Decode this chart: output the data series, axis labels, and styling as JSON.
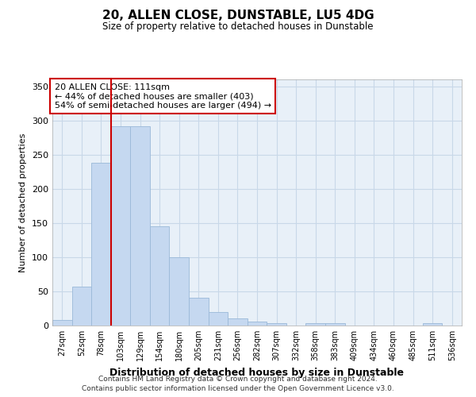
{
  "title": "20, ALLEN CLOSE, DUNSTABLE, LU5 4DG",
  "subtitle": "Size of property relative to detached houses in Dunstable",
  "xlabel": "Distribution of detached houses by size in Dunstable",
  "ylabel": "Number of detached properties",
  "bar_labels": [
    "27sqm",
    "52sqm",
    "78sqm",
    "103sqm",
    "129sqm",
    "154sqm",
    "180sqm",
    "205sqm",
    "231sqm",
    "256sqm",
    "282sqm",
    "307sqm",
    "332sqm",
    "358sqm",
    "383sqm",
    "409sqm",
    "434sqm",
    "460sqm",
    "485sqm",
    "511sqm",
    "536sqm"
  ],
  "bar_values": [
    8,
    57,
    238,
    291,
    291,
    145,
    100,
    41,
    20,
    11,
    6,
    3,
    0,
    4,
    3,
    0,
    0,
    0,
    0,
    3,
    0
  ],
  "bar_color": "#c5d8f0",
  "bar_edge_color": "#9ab8d8",
  "vline_x": 2.5,
  "vline_color": "#cc0000",
  "annotation_text": "20 ALLEN CLOSE: 111sqm\n← 44% of detached houses are smaller (403)\n54% of semi-detached houses are larger (494) →",
  "annotation_box_color": "#ffffff",
  "annotation_box_edge_color": "#cc0000",
  "ylim": [
    0,
    360
  ],
  "yticks": [
    0,
    50,
    100,
    150,
    200,
    250,
    300,
    350
  ],
  "grid_color": "#c8d8e8",
  "background_color": "#e8f0f8",
  "footer_line1": "Contains HM Land Registry data © Crown copyright and database right 2024.",
  "footer_line2": "Contains public sector information licensed under the Open Government Licence v3.0."
}
